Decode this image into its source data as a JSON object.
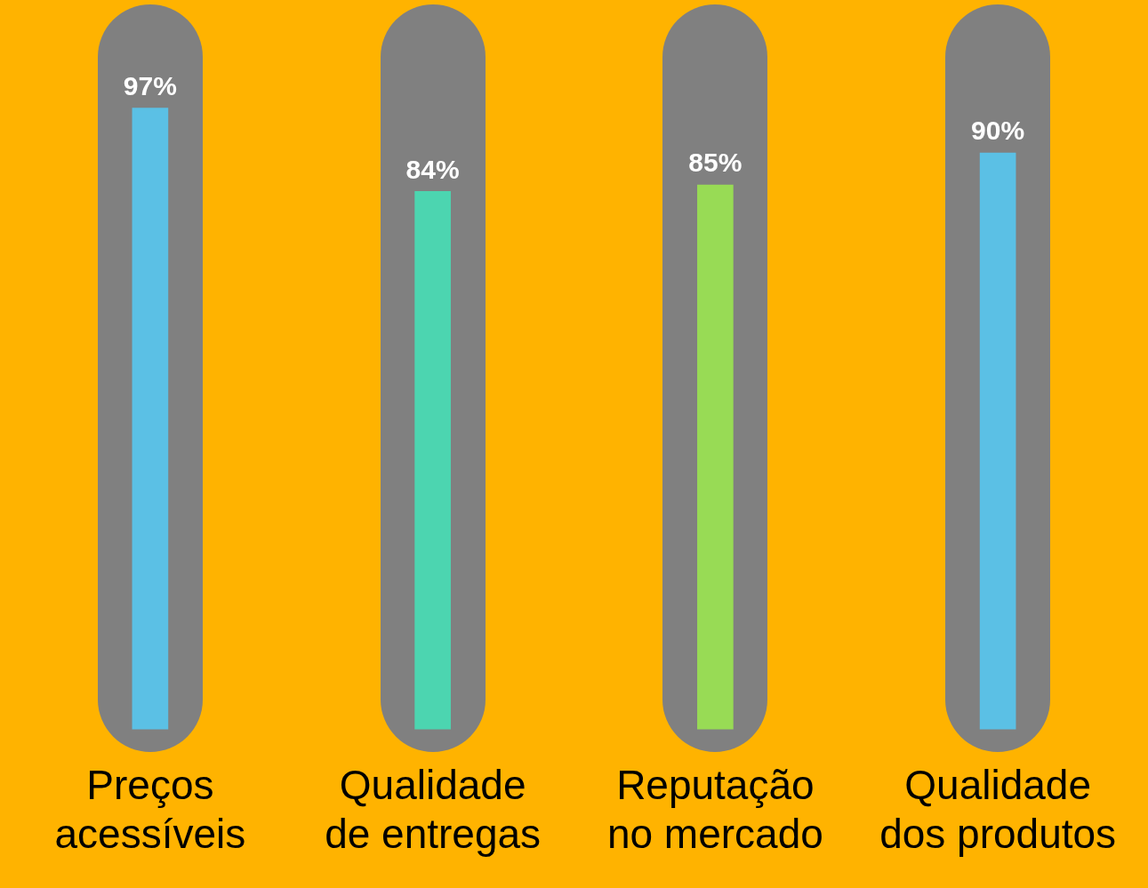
{
  "chart_data": {
    "type": "bar",
    "categories": [
      "Preços acessíveis",
      "Qualidade de entregas",
      "Reputação no mercado",
      "Qualidade dos produtos"
    ],
    "values": [
      97,
      84,
      85,
      90
    ],
    "colors": [
      "#5bc0e5",
      "#4cd5b0",
      "#98db55",
      "#5bc0e5"
    ],
    "value_labels": [
      "97%",
      "84%",
      "85%",
      "90%"
    ]
  }
}
